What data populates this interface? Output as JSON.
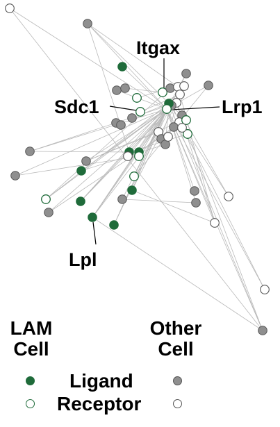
{
  "colors": {
    "lam_ligand": "#1f6b3a",
    "lam_receptor_outline": "#1f6b3a",
    "other_ligand": "#8f8f8f",
    "other_outline": "#555555",
    "receptor_fill": "#ffffff",
    "edge": "#b9b9b9"
  },
  "labels": {
    "itgax": "Itgax",
    "sdc1": "Sdc1",
    "lrp1": "Lrp1",
    "lpl": "Lpl"
  },
  "legend": {
    "lam_header_line1": "LAM",
    "lam_header_line2": "Cell",
    "other_header_line1": "Other",
    "other_header_line2": "Cell",
    "ligand_label": "Ligand",
    "receptor_label": "Receptor"
  },
  "node_types": {
    "lam_ligand": "LAM Cell Ligand",
    "lam_receptor": "LAM Cell Receptor",
    "other_ligand": "Other Cell Ligand",
    "other_receptor": "Other Cell Receptor"
  }
}
